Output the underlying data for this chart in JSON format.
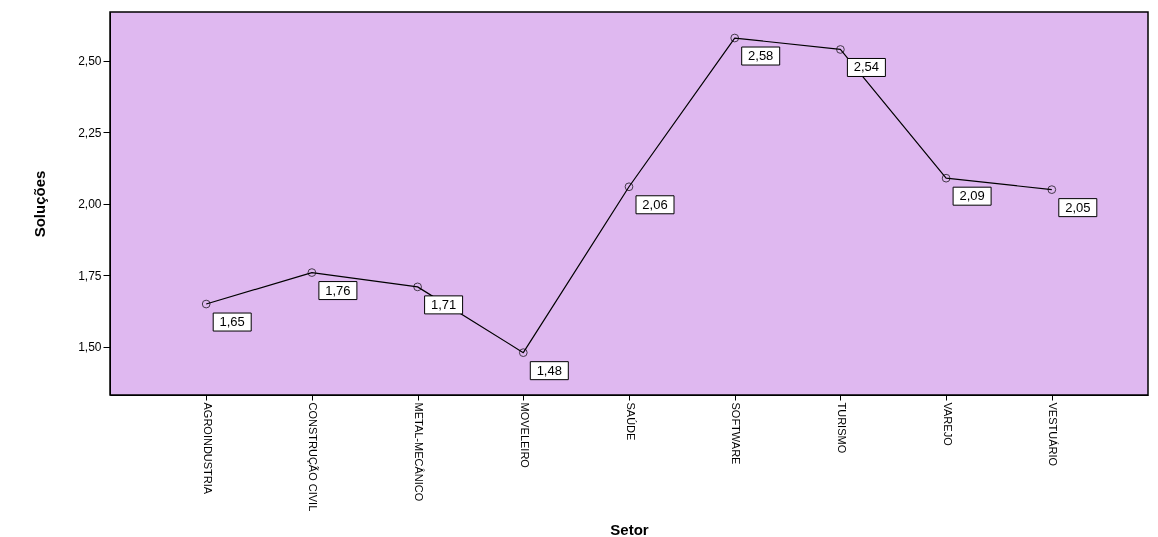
{
  "chart_data": {
    "type": "line",
    "xlabel": "Setor",
    "ylabel": "Soluções",
    "categories": [
      "AGROINDUSTRIA",
      "CONSTRUÇÃO CIVIL",
      "METAL-MECÂNICO",
      "MOVELEIRO",
      "SAÚDE",
      "SOFTWARE",
      "TURISMO",
      "VAREJO",
      "VESTUÁRIO"
    ],
    "series": [
      {
        "color": "#000000",
        "values": [
          1.65,
          1.76,
          1.71,
          1.48,
          2.06,
          2.58,
          2.54,
          2.09,
          2.05
        ],
        "value_labels": [
          "1,65",
          "1,76",
          "1,71",
          "1,48",
          "2,06",
          "2,58",
          "2,54",
          "2,09",
          "2,05"
        ]
      }
    ],
    "ylim": [
      1.332,
      2.671
    ],
    "yticks": [
      {
        "value": 1.5,
        "label": "1,50"
      },
      {
        "value": 1.75,
        "label": "1,75"
      },
      {
        "value": 2.0,
        "label": "2,00"
      },
      {
        "value": 2.25,
        "label": "2,25"
      },
      {
        "value": 2.5,
        "label": "2,50"
      }
    ],
    "marker": "circle",
    "line_style": "solid",
    "grid": false
  }
}
